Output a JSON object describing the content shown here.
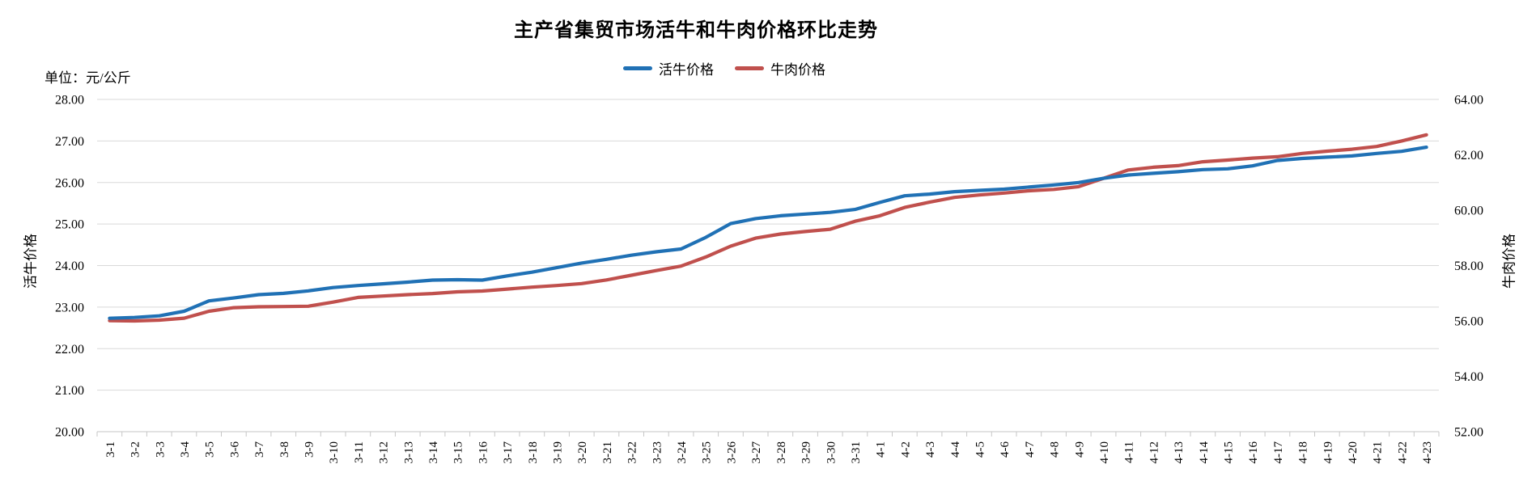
{
  "title": "主产省集贸市场活牛和牛肉价格环比走势",
  "unit_label": "单位：元/公斤",
  "legend": [
    {
      "label": "活牛价格",
      "color": "#2071B5"
    },
    {
      "label": "牛肉价格",
      "color": "#C0504D"
    }
  ],
  "left_axis": {
    "title": "活牛价格",
    "min": 20,
    "max": 28,
    "step": 1
  },
  "right_axis": {
    "title": "牛肉价格",
    "min": 52,
    "max": 64,
    "step": 2
  },
  "colors": {
    "gridline": "#D9D9D9",
    "axis_line": "#C6C6C6",
    "text": "#000000"
  },
  "chart_data": {
    "type": "line",
    "title": "主产省集贸市场活牛和牛肉价格环比走势",
    "grid": true,
    "legend_position": "top",
    "left_ylim": [
      20,
      28
    ],
    "right_ylim": [
      52,
      64
    ],
    "left_tick_labels": [
      "20.00",
      "21.00",
      "22.00",
      "23.00",
      "24.00",
      "25.00",
      "26.00",
      "27.00",
      "28.00"
    ],
    "right_tick_labels": [
      "52.00",
      "54.00",
      "56.00",
      "58.00",
      "60.00",
      "62.00",
      "64.00"
    ],
    "x": [
      "3-1",
      "3-2",
      "3-3",
      "3-4",
      "3-5",
      "3-6",
      "3-7",
      "3-8",
      "3-9",
      "3-10",
      "3-11",
      "3-12",
      "3-13",
      "3-14",
      "3-15",
      "3-16",
      "3-17",
      "3-18",
      "3-19",
      "3-20",
      "3-21",
      "3-22",
      "3-23",
      "3-24",
      "3-25",
      "3-26",
      "3-27",
      "3-28",
      "3-29",
      "3-30",
      "3-31",
      "4-1",
      "4-2",
      "4-3",
      "4-4",
      "4-5",
      "4-6",
      "4-7",
      "4-8",
      "4-9",
      "4-10",
      "4-11",
      "4-12",
      "4-13",
      "4-14",
      "4-15",
      "4-16",
      "4-17",
      "4-18",
      "4-19",
      "4-20",
      "4-21",
      "4-22",
      "4-23"
    ],
    "series": [
      {
        "name": "活牛价格",
        "axis": "left",
        "color": "#2071B5",
        "values": [
          22.73,
          22.75,
          22.79,
          22.9,
          23.15,
          23.22,
          23.3,
          23.33,
          23.39,
          23.47,
          23.52,
          23.56,
          23.6,
          23.65,
          23.66,
          23.65,
          23.75,
          23.84,
          23.95,
          24.06,
          24.15,
          24.25,
          24.33,
          24.4,
          24.68,
          25.01,
          25.13,
          25.2,
          25.24,
          25.28,
          25.35,
          25.52,
          25.68,
          25.72,
          25.78,
          25.81,
          25.84,
          25.89,
          25.94,
          26.0,
          26.1,
          26.18,
          26.22,
          26.26,
          26.31,
          26.33,
          26.4,
          26.53,
          26.58,
          26.61,
          26.64,
          26.7,
          26.75,
          26.85
        ]
      },
      {
        "name": "牛肉价格",
        "axis": "right",
        "color": "#C0504D",
        "values": [
          56.01,
          56.0,
          56.03,
          56.1,
          56.35,
          56.48,
          56.51,
          56.52,
          56.53,
          56.68,
          56.85,
          56.9,
          56.95,
          56.99,
          57.05,
          57.08,
          57.15,
          57.22,
          57.28,
          57.35,
          57.48,
          57.65,
          57.82,
          57.98,
          58.31,
          58.7,
          58.99,
          59.14,
          59.23,
          59.31,
          59.6,
          59.8,
          60.1,
          60.29,
          60.46,
          60.55,
          60.62,
          60.7,
          60.75,
          60.85,
          61.15,
          61.45,
          61.55,
          61.61,
          61.75,
          61.81,
          61.88,
          61.93,
          62.05,
          62.13,
          62.2,
          62.3,
          62.5,
          62.72
        ]
      }
    ]
  }
}
